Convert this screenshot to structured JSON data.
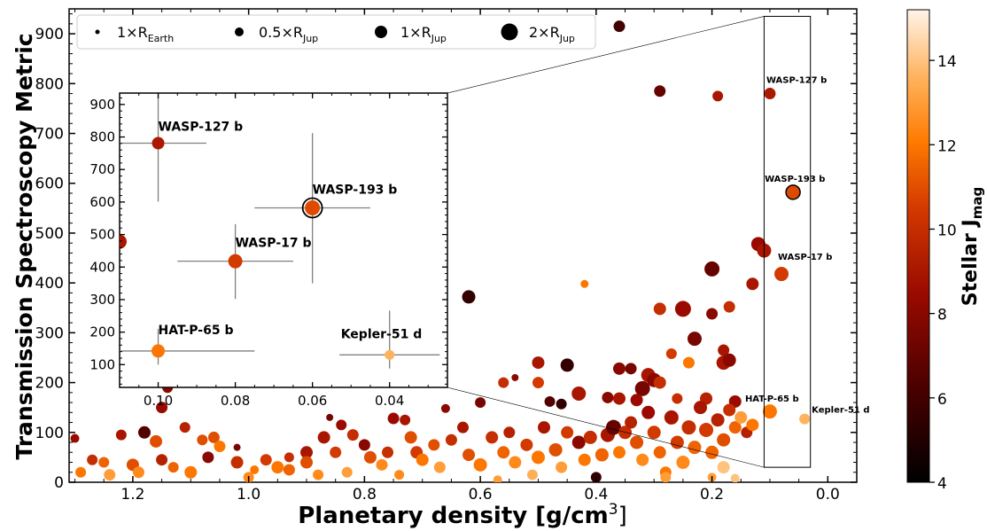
{
  "chart_data": {
    "type": "scatter",
    "xlabel": "Planetary density [g/cm",
    "xlabel_sup": "3",
    "xlabel_close": "]",
    "ylabel": "Transmission Spectroscopy Metric",
    "xlim": [
      1.31,
      -0.05
    ],
    "ylim": [
      0,
      950
    ],
    "x_ticks": [
      1.2,
      1.0,
      0.8,
      0.6,
      0.4,
      0.2,
      0.0
    ],
    "x_tick_labels": [
      "1.2",
      "1.0",
      "0.8",
      "0.6",
      "0.4",
      "0.2",
      "0.0"
    ],
    "y_ticks": [
      0,
      100,
      200,
      300,
      400,
      500,
      600,
      700,
      800,
      900
    ],
    "y_tick_labels": [
      "0",
      "100",
      "200",
      "300",
      "400",
      "500",
      "600",
      "700",
      "800",
      "900"
    ],
    "colorbar": {
      "label_main": "Stellar J",
      "label_sub": "mag",
      "range": [
        4,
        15.2
      ],
      "ticks": [
        4,
        6,
        8,
        10,
        12,
        14
      ],
      "tick_labels": [
        "4",
        "6",
        "8",
        "10",
        "12",
        "14"
      ],
      "colormap": "gist_heat"
    },
    "legend": {
      "placement": "top-left",
      "entries": [
        {
          "label": "1×R",
          "sub": "Earth",
          "size": 2.5
        },
        {
          "label": "0.5×R",
          "sub": "Jup",
          "size": 5
        },
        {
          "label": "1×R",
          "sub": "Jup",
          "size": 7
        },
        {
          "label": "2×R",
          "sub": "Jup",
          "size": 9.5
        }
      ]
    },
    "highlight_box": {
      "x_range": [
        0.03,
        0.11
      ],
      "y_range": [
        30,
        935
      ]
    },
    "annotations_main": [
      {
        "text": "WASP-127 b",
        "x": 0.1,
        "y": 780
      },
      {
        "text": "WASP-193 b",
        "x": 0.06,
        "y": 582
      },
      {
        "text": "WASP-17 b",
        "x": 0.08,
        "y": 418
      },
      {
        "text": "HAT-P-65 b",
        "x": 0.1,
        "y": 142
      },
      {
        "text": "Kepler-51 d",
        "x": 0.04,
        "y": 127
      }
    ],
    "inset": {
      "xlim": [
        0.11,
        0.025
      ],
      "ylim": [
        30,
        935
      ],
      "x_ticks": [
        0.1,
        0.08,
        0.06,
        0.04
      ],
      "x_tick_labels": [
        "0.10",
        "0.08",
        "0.06",
        "0.04"
      ],
      "y_ticks": [
        100,
        200,
        300,
        400,
        500,
        600,
        700,
        800,
        900
      ],
      "y_tick_labels": [
        "100",
        "200",
        "300",
        "400",
        "500",
        "600",
        "700",
        "800",
        "900"
      ],
      "points": [
        {
          "name": "WASP-127 b",
          "x": 0.1,
          "y": 781,
          "xerr": 0.0125,
          "yerr_lo": 180,
          "yerr_hi": 280,
          "jmag": 9.1,
          "size": 7
        },
        {
          "name": "WASP-193 b",
          "x": 0.06,
          "y": 582,
          "xerr": 0.015,
          "yerr_lo": 232,
          "yerr_hi": 230,
          "jmag": 10.9,
          "size": 8.5
        },
        {
          "name": "WASP-17 b",
          "x": 0.08,
          "y": 418,
          "xerr": 0.015,
          "yerr_lo": 116,
          "yerr_hi": 114,
          "jmag": 10.5,
          "size": 8
        },
        {
          "name": "HAT-P-65 b",
          "x": 0.1,
          "y": 142,
          "xerr": 0.025,
          "yerr_lo": 42,
          "yerr_hi": 68,
          "jmag": 12,
          "size": 7.5
        },
        {
          "name": "Kepler-51 d",
          "x": 0.04,
          "y": 130,
          "xerr": 0.013,
          "yerr_lo": 42,
          "yerr_hi": 136,
          "jmag": 13.6,
          "size": 5.5
        }
      ],
      "edge_point": {
        "x": 0.11,
        "y": 478,
        "jmag": 9,
        "size": 8
      }
    },
    "points": [
      {
        "x": 0.36,
        "y": 915,
        "jmag": 6.0,
        "size": 6.5
      },
      {
        "x": 0.29,
        "y": 785,
        "jmag": 7.0,
        "size": 6.5
      },
      {
        "x": 0.19,
        "y": 775,
        "jmag": 9.0,
        "size": 6
      },
      {
        "x": 0.1,
        "y": 780,
        "jmag": 9.1,
        "size": 6.5
      },
      {
        "x": 0.06,
        "y": 582,
        "jmag": 10.9,
        "size": 7.5
      },
      {
        "x": 0.08,
        "y": 418,
        "jmag": 10.5,
        "size": 8
      },
      {
        "x": 0.1,
        "y": 142,
        "jmag": 12,
        "size": 8
      },
      {
        "x": 0.04,
        "y": 127,
        "jmag": 13.6,
        "size": 6
      },
      {
        "x": 0.2,
        "y": 428,
        "jmag": 7,
        "size": 8.5
      },
      {
        "x": 0.12,
        "y": 478,
        "jmag": 8.5,
        "size": 8
      },
      {
        "x": 0.11,
        "y": 465,
        "jmag": 9,
        "size": 8
      },
      {
        "x": 0.13,
        "y": 398,
        "jmag": 9,
        "size": 7
      },
      {
        "x": 0.42,
        "y": 398,
        "jmag": 12,
        "size": 4.5
      },
      {
        "x": 0.62,
        "y": 372,
        "jmag": 5.5,
        "size": 7.5
      },
      {
        "x": 0.29,
        "y": 348,
        "jmag": 10,
        "size": 7
      },
      {
        "x": 0.25,
        "y": 348,
        "jmag": 8.5,
        "size": 9
      },
      {
        "x": 0.2,
        "y": 338,
        "jmag": 8,
        "size": 6.5
      },
      {
        "x": 0.17,
        "y": 352,
        "jmag": 10,
        "size": 6.5
      },
      {
        "x": 0.23,
        "y": 288,
        "jmag": 7.5,
        "size": 8
      },
      {
        "x": 0.18,
        "y": 265,
        "jmag": 9,
        "size": 6.5
      },
      {
        "x": 0.27,
        "y": 258,
        "jmag": 10.5,
        "size": 6
      },
      {
        "x": 0.24,
        "y": 240,
        "jmag": 12,
        "size": 6.5
      },
      {
        "x": 0.18,
        "y": 240,
        "jmag": 9,
        "size": 8
      },
      {
        "x": 0.17,
        "y": 245,
        "jmag": 8,
        "size": 7.5
      },
      {
        "x": 0.5,
        "y": 240,
        "jmag": 9,
        "size": 7
      },
      {
        "x": 0.45,
        "y": 235,
        "jmag": 5.5,
        "size": 7.5
      },
      {
        "x": 0.36,
        "y": 228,
        "jmag": 8,
        "size": 7
      },
      {
        "x": 0.34,
        "y": 228,
        "jmag": 7.5,
        "size": 6.5
      },
      {
        "x": 0.31,
        "y": 215,
        "jmag": 9,
        "size": 8
      },
      {
        "x": 0.3,
        "y": 205,
        "jmag": 8,
        "size": 8
      },
      {
        "x": 0.29,
        "y": 200,
        "jmag": 10,
        "size": 7
      },
      {
        "x": 0.32,
        "y": 188,
        "jmag": 7.5,
        "size": 8.5
      },
      {
        "x": 0.43,
        "y": 178,
        "jmag": 9,
        "size": 8
      },
      {
        "x": 0.48,
        "y": 162,
        "jmag": 6.5,
        "size": 6
      },
      {
        "x": 0.46,
        "y": 157,
        "jmag": 5.5,
        "size": 6
      },
      {
        "x": 0.38,
        "y": 170,
        "jmag": 8,
        "size": 6.5
      },
      {
        "x": 0.36,
        "y": 168,
        "jmag": 9,
        "size": 7
      },
      {
        "x": 0.33,
        "y": 165,
        "jmag": 8.5,
        "size": 7
      },
      {
        "x": 0.26,
        "y": 168,
        "jmag": 10,
        "size": 6
      },
      {
        "x": 0.21,
        "y": 168,
        "jmag": 9.5,
        "size": 7
      },
      {
        "x": 0.16,
        "y": 162,
        "jmag": 8.5,
        "size": 7
      },
      {
        "x": 0.5,
        "y": 200,
        "jmag": 10.5,
        "size": 6.5
      },
      {
        "x": 0.54,
        "y": 210,
        "jmag": 8,
        "size": 4
      },
      {
        "x": 0.56,
        "y": 200,
        "jmag": 10,
        "size": 6
      },
      {
        "x": 0.6,
        "y": 160,
        "jmag": 7.5,
        "size": 6
      },
      {
        "x": 0.66,
        "y": 148,
        "jmag": 8,
        "size": 5
      },
      {
        "x": 1.14,
        "y": 190,
        "jmag": 8,
        "size": 6
      },
      {
        "x": 1.02,
        "y": 70,
        "jmag": 7.5,
        "size": 4
      },
      {
        "x": 1.22,
        "y": 95,
        "jmag": 9,
        "size": 6
      },
      {
        "x": 1.18,
        "y": 100,
        "jmag": 6.5,
        "size": 7
      },
      {
        "x": 1.15,
        "y": 150,
        "jmag": 8.5,
        "size": 6.5
      },
      {
        "x": 1.16,
        "y": 82,
        "jmag": 11,
        "size": 7
      },
      {
        "x": 1.11,
        "y": 110,
        "jmag": 9.5,
        "size": 6
      },
      {
        "x": 1.08,
        "y": 85,
        "jmag": 11,
        "size": 6
      },
      {
        "x": 1.06,
        "y": 90,
        "jmag": 11,
        "size": 6.5
      },
      {
        "x": 1.05,
        "y": 72,
        "jmag": 12,
        "size": 6.5
      },
      {
        "x": 1.02,
        "y": 40,
        "jmag": 10,
        "size": 7
      },
      {
        "x": 1.0,
        "y": 10,
        "jmag": 12.5,
        "size": 6
      },
      {
        "x": 1.3,
        "y": 88,
        "jmag": 8.5,
        "size": 5
      },
      {
        "x": 1.29,
        "y": 20,
        "jmag": 12,
        "size": 6
      },
      {
        "x": 1.27,
        "y": 45,
        "jmag": 10,
        "size": 6
      },
      {
        "x": 1.25,
        "y": 40,
        "jmag": 11.5,
        "size": 6
      },
      {
        "x": 1.24,
        "y": 15,
        "jmag": 13,
        "size": 6.5
      },
      {
        "x": 1.2,
        "y": 35,
        "jmag": 11,
        "size": 7
      },
      {
        "x": 1.19,
        "y": 20,
        "jmag": 12.5,
        "size": 6.5
      },
      {
        "x": 1.15,
        "y": 45,
        "jmag": 9.5,
        "size": 6.5
      },
      {
        "x": 1.13,
        "y": 30,
        "jmag": 11.5,
        "size": 6
      },
      {
        "x": 1.1,
        "y": 20,
        "jmag": 12,
        "size": 7
      },
      {
        "x": 1.07,
        "y": 50,
        "jmag": 8,
        "size": 6.5
      },
      {
        "x": 0.97,
        "y": 45,
        "jmag": 10.5,
        "size": 6.5
      },
      {
        "x": 0.95,
        "y": 30,
        "jmag": 12,
        "size": 7
      },
      {
        "x": 0.93,
        "y": 25,
        "jmag": 11.5,
        "size": 6.5
      },
      {
        "x": 0.9,
        "y": 60,
        "jmag": 9,
        "size": 7
      },
      {
        "x": 0.9,
        "y": 40,
        "jmag": 11,
        "size": 7
      },
      {
        "x": 0.88,
        "y": 15,
        "jmag": 12.5,
        "size": 6
      },
      {
        "x": 0.87,
        "y": 90,
        "jmag": 9,
        "size": 7
      },
      {
        "x": 0.85,
        "y": 60,
        "jmag": 10.5,
        "size": 6.5
      },
      {
        "x": 0.84,
        "y": 115,
        "jmag": 8.5,
        "size": 6
      },
      {
        "x": 0.86,
        "y": 130,
        "jmag": 7.5,
        "size": 4
      },
      {
        "x": 0.82,
        "y": 95,
        "jmag": 10,
        "size": 6.5
      },
      {
        "x": 0.8,
        "y": 75,
        "jmag": 8,
        "size": 6.5
      },
      {
        "x": 0.79,
        "y": 50,
        "jmag": 11,
        "size": 7
      },
      {
        "x": 0.77,
        "y": 35,
        "jmag": 12.5,
        "size": 6.5
      },
      {
        "x": 0.76,
        "y": 60,
        "jmag": 10,
        "size": 6.5
      },
      {
        "x": 0.75,
        "y": 128,
        "jmag": 8.5,
        "size": 6.5
      },
      {
        "x": 0.73,
        "y": 125,
        "jmag": 9,
        "size": 6
      },
      {
        "x": 0.72,
        "y": 90,
        "jmag": 11,
        "size": 7
      },
      {
        "x": 0.71,
        "y": 60,
        "jmag": 10.5,
        "size": 7
      },
      {
        "x": 0.7,
        "y": 45,
        "jmag": 12,
        "size": 7
      },
      {
        "x": 0.68,
        "y": 75,
        "jmag": 11,
        "size": 6.5
      },
      {
        "x": 0.67,
        "y": 30,
        "jmag": 13,
        "size": 6.5
      },
      {
        "x": 0.65,
        "y": 85,
        "jmag": 10,
        "size": 6.5
      },
      {
        "x": 0.63,
        "y": 110,
        "jmag": 9,
        "size": 6.5
      },
      {
        "x": 0.62,
        "y": 55,
        "jmag": 11,
        "size": 7
      },
      {
        "x": 0.6,
        "y": 35,
        "jmag": 12,
        "size": 7.5
      },
      {
        "x": 0.58,
        "y": 90,
        "jmag": 10,
        "size": 7
      },
      {
        "x": 0.56,
        "y": 60,
        "jmag": 11.5,
        "size": 7
      },
      {
        "x": 0.55,
        "y": 100,
        "jmag": 9.5,
        "size": 6.5
      },
      {
        "x": 0.54,
        "y": 40,
        "jmag": 12.5,
        "size": 7
      },
      {
        "x": 0.52,
        "y": 75,
        "jmag": 10.5,
        "size": 7
      },
      {
        "x": 0.5,
        "y": 50,
        "jmag": 12,
        "size": 7.5
      },
      {
        "x": 0.49,
        "y": 110,
        "jmag": 9,
        "size": 7
      },
      {
        "x": 0.47,
        "y": 65,
        "jmag": 11,
        "size": 7.5
      },
      {
        "x": 0.46,
        "y": 30,
        "jmag": 13,
        "size": 6.5
      },
      {
        "x": 0.45,
        "y": 100,
        "jmag": 10.5,
        "size": 7
      },
      {
        "x": 0.43,
        "y": 80,
        "jmag": 8,
        "size": 7.5
      },
      {
        "x": 0.42,
        "y": 45,
        "jmag": 12,
        "size": 7
      },
      {
        "x": 0.41,
        "y": 90,
        "jmag": 10,
        "size": 7.5
      },
      {
        "x": 0.4,
        "y": 10,
        "jmag": 5.5,
        "size": 6
      },
      {
        "x": 0.39,
        "y": 55,
        "jmag": 11.5,
        "size": 7.5
      },
      {
        "x": 0.38,
        "y": 95,
        "jmag": 9,
        "size": 8
      },
      {
        "x": 0.37,
        "y": 110,
        "jmag": 7,
        "size": 8.5
      },
      {
        "x": 0.36,
        "y": 60,
        "jmag": 12,
        "size": 7
      },
      {
        "x": 0.35,
        "y": 100,
        "jmag": 10,
        "size": 7.5
      },
      {
        "x": 0.34,
        "y": 120,
        "jmag": 9.5,
        "size": 7
      },
      {
        "x": 0.33,
        "y": 80,
        "jmag": 11,
        "size": 7.5
      },
      {
        "x": 0.32,
        "y": 45,
        "jmag": 12.5,
        "size": 7
      },
      {
        "x": 0.31,
        "y": 140,
        "jmag": 8.5,
        "size": 7.5
      },
      {
        "x": 0.3,
        "y": 100,
        "jmag": 10.5,
        "size": 7.5
      },
      {
        "x": 0.29,
        "y": 60,
        "jmag": 11.5,
        "size": 7
      },
      {
        "x": 0.28,
        "y": 20,
        "jmag": 12,
        "size": 6.5
      },
      {
        "x": 0.27,
        "y": 130,
        "jmag": 9,
        "size": 8
      },
      {
        "x": 0.26,
        "y": 80,
        "jmag": 10.5,
        "size": 7.5
      },
      {
        "x": 0.25,
        "y": 40,
        "jmag": 12.5,
        "size": 7.5
      },
      {
        "x": 0.24,
        "y": 110,
        "jmag": 10,
        "size": 8
      },
      {
        "x": 0.23,
        "y": 70,
        "jmag": 11.5,
        "size": 7.5
      },
      {
        "x": 0.22,
        "y": 150,
        "jmag": 9,
        "size": 7.5
      },
      {
        "x": 0.21,
        "y": 105,
        "jmag": 10.5,
        "size": 8
      },
      {
        "x": 0.2,
        "y": 60,
        "jmag": 11.5,
        "size": 7.5
      },
      {
        "x": 0.19,
        "y": 125,
        "jmag": 9.5,
        "size": 7.5
      },
      {
        "x": 0.18,
        "y": 85,
        "jmag": 11,
        "size": 7.5
      },
      {
        "x": 0.17,
        "y": 145,
        "jmag": 10,
        "size": 7
      },
      {
        "x": 0.16,
        "y": 110,
        "jmag": 11.5,
        "size": 7
      },
      {
        "x": 0.15,
        "y": 130,
        "jmag": 13,
        "size": 7
      },
      {
        "x": 0.14,
        "y": 100,
        "jmag": 9.5,
        "size": 6.5
      },
      {
        "x": 0.13,
        "y": 115,
        "jmag": 12,
        "size": 7
      },
      {
        "x": 0.18,
        "y": 30,
        "jmag": 14,
        "size": 7
      },
      {
        "x": 0.16,
        "y": 8,
        "jmag": 14,
        "size": 5
      },
      {
        "x": 0.28,
        "y": 10,
        "jmag": 13,
        "size": 6
      },
      {
        "x": 0.2,
        "y": 10,
        "jmag": 13,
        "size": 5
      },
      {
        "x": 0.51,
        "y": 15,
        "jmag": 13.5,
        "size": 6
      },
      {
        "x": 0.57,
        "y": 5,
        "jmag": 13,
        "size": 5
      },
      {
        "x": 0.74,
        "y": 15,
        "jmag": 12.5,
        "size": 5.5
      },
      {
        "x": 0.83,
        "y": 20,
        "jmag": 13,
        "size": 6
      },
      {
        "x": 0.93,
        "y": 50,
        "jmag": 10,
        "size": 5.5
      },
      {
        "x": 0.99,
        "y": 25,
        "jmag": 12,
        "size": 5
      }
    ]
  }
}
